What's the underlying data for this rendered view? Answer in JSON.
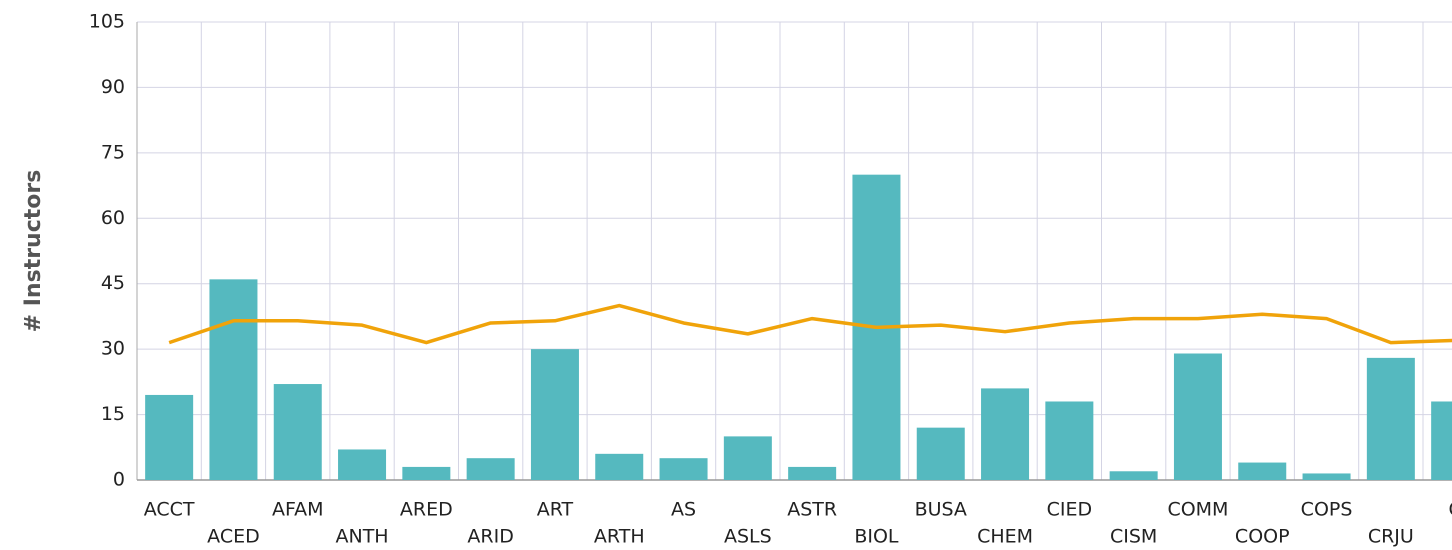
{
  "chart_data": {
    "type": "bar",
    "y_label": "# Instructors",
    "categories": [
      "ACCT",
      "ACED",
      "AFAM",
      "ANTH",
      "ARED",
      "ARID",
      "ART",
      "ARTH",
      "AS",
      "ASLS",
      "ASTR",
      "BIOL",
      "BUSA",
      "CHEM",
      "CIED",
      "CISM",
      "COMM",
      "COOP",
      "COPS",
      "CRJU",
      "C"
    ],
    "series": [
      {
        "type": "bar",
        "color": "#55b9bf",
        "values": [
          19.5,
          46,
          22,
          7,
          3,
          5,
          30,
          6,
          5,
          10,
          3,
          70,
          12,
          21,
          18,
          2,
          29,
          4,
          1.5,
          28,
          18
        ]
      },
      {
        "type": "line",
        "color": "#f0a30a",
        "values": [
          31.5,
          36.5,
          36.5,
          35.5,
          31.5,
          36,
          36.5,
          40,
          36,
          33.5,
          37,
          35,
          35.5,
          34,
          36,
          37,
          37,
          38,
          37,
          31.5,
          32
        ]
      }
    ],
    "ylim": [
      0,
      105
    ],
    "yticks": [
      0,
      15,
      30,
      45,
      60,
      75,
      90,
      105
    ],
    "grid": true
  }
}
